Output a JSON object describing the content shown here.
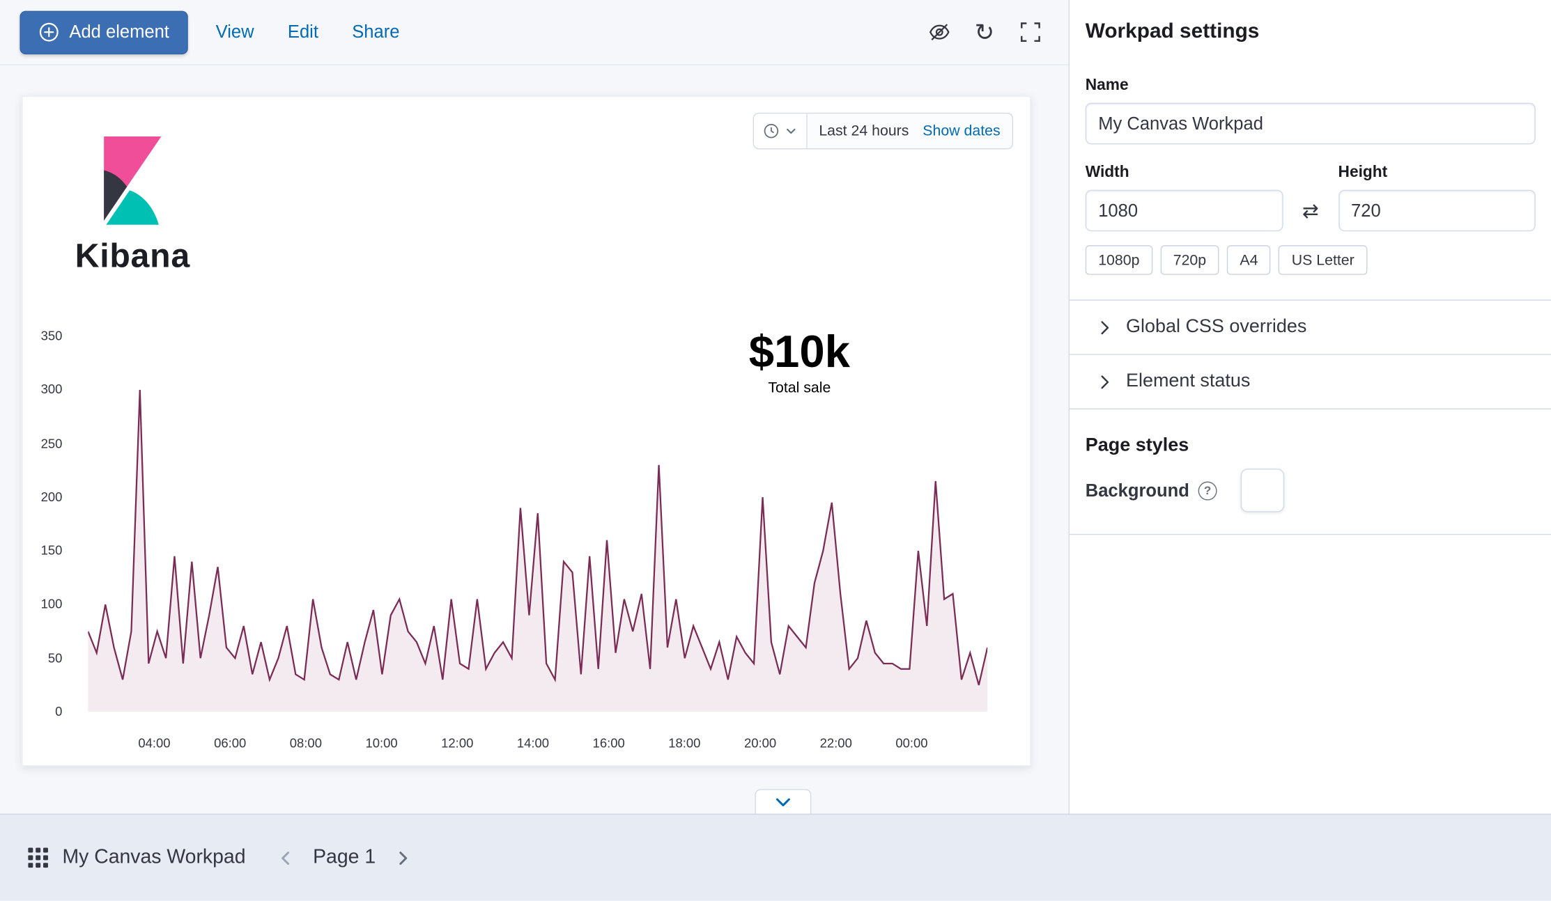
{
  "toolbar": {
    "add_element_label": "Add element",
    "menu": [
      {
        "label": "View"
      },
      {
        "label": "Edit"
      },
      {
        "label": "Share"
      }
    ]
  },
  "workpad": {
    "logo_text": "Kibana",
    "time_filter": {
      "duration_label": "Last 24 hours",
      "show_dates_label": "Show dates"
    },
    "metric": {
      "value": "$10k",
      "label": "Total sale"
    }
  },
  "chart_data": {
    "type": "area",
    "title": "",
    "xlabel": "",
    "ylabel": "",
    "ylim": [
      0,
      350
    ],
    "yticks": [
      0,
      50,
      100,
      150,
      200,
      250,
      300,
      350
    ],
    "x_hours_range": [
      2.25,
      26
    ],
    "xticks": [
      {
        "hour": 4,
        "label": "04:00"
      },
      {
        "hour": 6,
        "label": "06:00"
      },
      {
        "hour": 8,
        "label": "08:00"
      },
      {
        "hour": 10,
        "label": "10:00"
      },
      {
        "hour": 12,
        "label": "12:00"
      },
      {
        "hour": 14,
        "label": "14:00"
      },
      {
        "hour": 16,
        "label": "16:00"
      },
      {
        "hour": 18,
        "label": "18:00"
      },
      {
        "hour": 20,
        "label": "20:00"
      },
      {
        "hour": 22,
        "label": "22:00"
      },
      {
        "hour": 24,
        "label": "00:00"
      }
    ],
    "values": [
      75,
      55,
      100,
      60,
      30,
      75,
      300,
      45,
      75,
      50,
      145,
      45,
      140,
      50,
      90,
      135,
      60,
      50,
      80,
      35,
      65,
      30,
      50,
      80,
      35,
      30,
      105,
      60,
      35,
      30,
      65,
      30,
      65,
      95,
      35,
      90,
      105,
      75,
      65,
      45,
      80,
      30,
      105,
      45,
      40,
      105,
      40,
      55,
      65,
      50,
      190,
      90,
      185,
      45,
      30,
      140,
      130,
      35,
      145,
      40,
      160,
      55,
      105,
      75,
      110,
      40,
      230,
      60,
      105,
      50,
      80,
      60,
      40,
      65,
      30,
      70,
      55,
      45,
      200,
      65,
      35,
      80,
      70,
      60,
      120,
      150,
      195,
      110,
      40,
      50,
      85,
      55,
      45,
      45,
      40,
      40,
      150,
      80,
      215,
      105,
      110,
      30,
      55,
      25,
      60
    ],
    "line_color": "#7b2c55",
    "fill_color": "#f4ebf1",
    "grid": "off",
    "legend": "off"
  },
  "settings_panel": {
    "title": "Workpad settings",
    "name_label": "Name",
    "name_value": "My Canvas Workpad",
    "width_label": "Width",
    "width_value": "1080",
    "height_label": "Height",
    "height_value": "720",
    "size_presets": [
      "1080p",
      "720p",
      "A4",
      "US Letter"
    ],
    "accordions": [
      {
        "label": "Global CSS overrides"
      },
      {
        "label": "Element status"
      }
    ],
    "page_styles_title": "Page styles",
    "background_label": "Background"
  },
  "footer": {
    "workpad_name": "My Canvas Workpad",
    "page_label": "Page 1"
  },
  "icons": {
    "add": "plus-circle",
    "hide": "eye-slash",
    "refresh": "circular-arrow",
    "fullscreen": "corner-brackets",
    "clock": "clock",
    "caret": "chevron-down",
    "swap": "swap-arrows",
    "help": "question-circle",
    "grid": "apps-grid",
    "prev": "chevron-left",
    "next": "chevron-right"
  },
  "colors": {
    "primary_button": "#3c6eb4",
    "link": "#006bb4",
    "panel_border": "#d3dae6",
    "footer_bg": "#e6ebf4",
    "chart_line": "#7b2c55",
    "chart_fill": "#f4ebf1",
    "logo_pink": "#f04e98",
    "logo_dark": "#343741",
    "logo_teal": "#00bfb3"
  }
}
